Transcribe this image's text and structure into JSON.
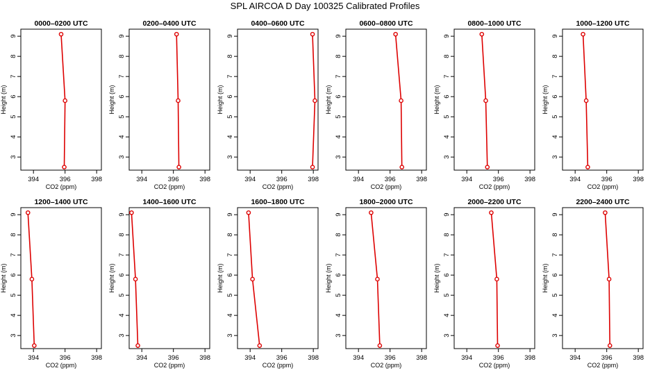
{
  "figure": {
    "title": "SPL AIRCOA D  Day 100325  Calibrated Profiles",
    "xlabel": "CO2 (ppm)",
    "ylabel": "Height (m)",
    "line_color": "#dd0000"
  },
  "chart_data": [
    {
      "type": "line",
      "title": "0000–0200 UTC",
      "xlim": [
        393.2,
        398.3
      ],
      "ylim": [
        2.35,
        9.35
      ],
      "xticks": [
        "394",
        "396",
        "398"
      ],
      "yticks": [
        "3",
        "4",
        "5",
        "6",
        "7",
        "8",
        "9"
      ],
      "series": [
        {
          "x": [
            395.75,
            396.0,
            395.95
          ],
          "y": [
            9.1,
            5.8,
            2.5
          ]
        }
      ]
    },
    {
      "type": "line",
      "title": "0200–0400 UTC",
      "xlim": [
        393.2,
        398.3
      ],
      "ylim": [
        2.35,
        9.35
      ],
      "xticks": [
        "394",
        "396",
        "398"
      ],
      "yticks": [
        "3",
        "4",
        "5",
        "6",
        "7",
        "8",
        "9"
      ],
      "series": [
        {
          "x": [
            396.2,
            396.3,
            396.35
          ],
          "y": [
            9.1,
            5.8,
            2.5
          ]
        }
      ]
    },
    {
      "type": "line",
      "title": "0400–0600 UTC",
      "xlim": [
        393.2,
        398.3
      ],
      "ylim": [
        2.35,
        9.35
      ],
      "xticks": [
        "394",
        "396",
        "398"
      ],
      "yticks": [
        "3",
        "4",
        "5",
        "6",
        "7",
        "8",
        "9"
      ],
      "series": [
        {
          "x": [
            397.95,
            398.1,
            397.95
          ],
          "y": [
            9.1,
            5.8,
            2.5
          ]
        }
      ]
    },
    {
      "type": "line",
      "title": "0600–0800 UTC",
      "xlim": [
        393.2,
        398.3
      ],
      "ylim": [
        2.35,
        9.35
      ],
      "xticks": [
        "394",
        "396",
        "398"
      ],
      "yticks": [
        "3",
        "4",
        "5",
        "6",
        "7",
        "8",
        "9"
      ],
      "series": [
        {
          "x": [
            396.35,
            396.7,
            396.75
          ],
          "y": [
            9.1,
            5.8,
            2.5
          ]
        }
      ]
    },
    {
      "type": "line",
      "title": "0800–1000 UTC",
      "xlim": [
        393.2,
        398.3
      ],
      "ylim": [
        2.35,
        9.35
      ],
      "xticks": [
        "394",
        "396",
        "398"
      ],
      "yticks": [
        "3",
        "4",
        "5",
        "6",
        "7",
        "8",
        "9"
      ],
      "series": [
        {
          "x": [
            394.95,
            395.2,
            395.3
          ],
          "y": [
            9.1,
            5.8,
            2.5
          ]
        }
      ]
    },
    {
      "type": "line",
      "title": "1000–1200 UTC",
      "xlim": [
        393.2,
        398.3
      ],
      "ylim": [
        2.35,
        9.35
      ],
      "xticks": [
        "394",
        "396",
        "398"
      ],
      "yticks": [
        "3",
        "4",
        "5",
        "6",
        "7",
        "8",
        "9"
      ],
      "series": [
        {
          "x": [
            394.5,
            394.7,
            394.8
          ],
          "y": [
            9.1,
            5.8,
            2.5
          ]
        }
      ]
    },
    {
      "type": "line",
      "title": "1200–1400 UTC",
      "xlim": [
        393.2,
        398.3
      ],
      "ylim": [
        2.35,
        9.35
      ],
      "xticks": [
        "394",
        "396",
        "398"
      ],
      "yticks": [
        "3",
        "4",
        "5",
        "6",
        "7",
        "8",
        "9"
      ],
      "series": [
        {
          "x": [
            393.65,
            393.9,
            394.05
          ],
          "y": [
            9.1,
            5.8,
            2.5
          ]
        }
      ]
    },
    {
      "type": "line",
      "title": "1400–1600 UTC",
      "xlim": [
        393.2,
        398.3
      ],
      "ylim": [
        2.35,
        9.35
      ],
      "xticks": [
        "394",
        "396",
        "398"
      ],
      "yticks": [
        "3",
        "4",
        "5",
        "6",
        "7",
        "8",
        "9"
      ],
      "series": [
        {
          "x": [
            393.35,
            393.6,
            393.75
          ],
          "y": [
            9.1,
            5.8,
            2.5
          ]
        }
      ]
    },
    {
      "type": "line",
      "title": "1600–1800 UTC",
      "xlim": [
        393.2,
        398.3
      ],
      "ylim": [
        2.35,
        9.35
      ],
      "xticks": [
        "394",
        "396",
        "398"
      ],
      "yticks": [
        "3",
        "4",
        "5",
        "6",
        "7",
        "8",
        "9"
      ],
      "series": [
        {
          "x": [
            393.9,
            394.15,
            394.6
          ],
          "y": [
            9.1,
            5.8,
            2.5
          ]
        }
      ]
    },
    {
      "type": "line",
      "title": "1800–2000 UTC",
      "xlim": [
        393.2,
        398.3
      ],
      "ylim": [
        2.35,
        9.35
      ],
      "xticks": [
        "394",
        "396",
        "398"
      ],
      "yticks": [
        "3",
        "4",
        "5",
        "6",
        "7",
        "8",
        "9"
      ],
      "series": [
        {
          "x": [
            394.8,
            395.2,
            395.35
          ],
          "y": [
            9.1,
            5.8,
            2.5
          ]
        }
      ]
    },
    {
      "type": "line",
      "title": "2000–2200 UTC",
      "xlim": [
        393.2,
        398.3
      ],
      "ylim": [
        2.35,
        9.35
      ],
      "xticks": [
        "394",
        "396",
        "398"
      ],
      "yticks": [
        "3",
        "4",
        "5",
        "6",
        "7",
        "8",
        "9"
      ],
      "series": [
        {
          "x": [
            395.55,
            395.9,
            395.95
          ],
          "y": [
            9.1,
            5.8,
            2.5
          ]
        }
      ]
    },
    {
      "type": "line",
      "title": "2200–2400 UTC",
      "xlim": [
        393.2,
        398.3
      ],
      "ylim": [
        2.35,
        9.35
      ],
      "xticks": [
        "394",
        "396",
        "398"
      ],
      "yticks": [
        "3",
        "4",
        "5",
        "6",
        "7",
        "8",
        "9"
      ],
      "series": [
        {
          "x": [
            395.9,
            396.15,
            396.2
          ],
          "y": [
            9.1,
            5.8,
            2.5
          ]
        }
      ]
    }
  ]
}
